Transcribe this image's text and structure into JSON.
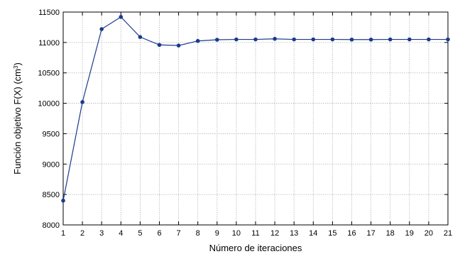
{
  "chart_data": {
    "type": "line",
    "title": "",
    "xlabel": "Número de iteraciones",
    "ylabel_prefix": "Función objetivo F(X) (cm",
    "ylabel_sup": "3",
    "ylabel_suffix": ")",
    "xlim": [
      1,
      21
    ],
    "ylim": [
      8000,
      11500
    ],
    "x_ticks": [
      1,
      2,
      3,
      4,
      5,
      6,
      7,
      8,
      9,
      10,
      11,
      12,
      13,
      14,
      15,
      16,
      17,
      18,
      19,
      20,
      21
    ],
    "y_ticks": [
      8000,
      8500,
      9000,
      9500,
      10000,
      10500,
      11000,
      11500
    ],
    "grid": true,
    "series": [
      {
        "x": [
          1,
          2,
          3,
          4,
          5,
          6,
          7,
          8,
          9,
          10,
          11,
          12,
          13,
          14,
          15,
          16,
          17,
          18,
          19,
          20,
          21
        ],
        "values": [
          8400,
          10020,
          11220,
          11420,
          11090,
          10960,
          10950,
          11025,
          11045,
          11050,
          11050,
          11060,
          11050,
          11050,
          11050,
          11048,
          11048,
          11050,
          11050,
          11050,
          11050
        ],
        "color": "#1a3a8c"
      }
    ]
  }
}
